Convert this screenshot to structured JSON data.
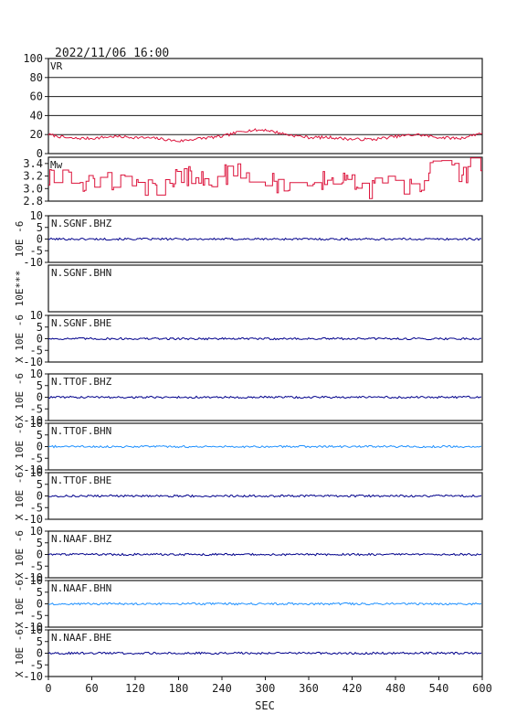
{
  "title": "2022/11/06 16:00",
  "xlabel": "SEC",
  "colors": {
    "frame": "#1a1a1a",
    "grid": "#1a1a1a",
    "vr_line": "#dc143c",
    "mw_line": "#dc143c",
    "trace_dark": "#00008b",
    "trace_light": "#1e90ff"
  },
  "chart_data": [
    {
      "type": "line",
      "panel": "vr",
      "label": "VR",
      "xlim": [
        0,
        600
      ],
      "ylim": [
        0,
        100
      ],
      "yticks": [
        "0",
        "20",
        "40",
        "60",
        "80",
        "100"
      ],
      "grid": true,
      "series": [
        {
          "x": [
            0,
            30,
            60,
            90,
            120,
            150,
            180,
            210,
            240,
            270,
            300,
            330,
            360,
            390,
            420,
            450,
            480,
            510,
            540,
            570,
            600
          ],
          "values": [
            20,
            16,
            16,
            18,
            17,
            16,
            13,
            16,
            18,
            24,
            25,
            20,
            17,
            17,
            15,
            15,
            18,
            20,
            17,
            16,
            22
          ]
        }
      ]
    },
    {
      "type": "line",
      "panel": "mw",
      "label": "Mw",
      "xlim": [
        0,
        600
      ],
      "ylim": [
        2.8,
        3.5
      ],
      "yticks": [
        "2.8",
        "3.0",
        "3.2",
        "3.4"
      ],
      "grid": false,
      "series": [
        {
          "x": [
            0,
            30,
            60,
            90,
            120,
            150,
            180,
            210,
            240,
            270,
            300,
            330,
            360,
            390,
            420,
            450,
            480,
            510,
            540,
            570,
            600
          ],
          "values": [
            3.2,
            3.1,
            3.05,
            3.1,
            3.0,
            2.95,
            3.25,
            3.1,
            3.2,
            3.25,
            3.1,
            3.1,
            3.05,
            3.2,
            3.05,
            3.0,
            3.1,
            3.05,
            3.4,
            3.2,
            3.45
          ]
        }
      ]
    }
  ],
  "traces": [
    {
      "label": "N.SGNF.BHZ",
      "ylabel": "10E -6",
      "yticks": [
        "10",
        "5",
        "0",
        "-5",
        "-10"
      ],
      "has_signal": true,
      "shade": "dark"
    },
    {
      "label": "N.SGNF.BHN",
      "ylabel": "10E***",
      "yticks": [],
      "has_signal": false,
      "shade": "dark"
    },
    {
      "label": "N.SGNF.BHE",
      "ylabel": "X 10E -6",
      "yticks": [
        "10",
        "5",
        "0",
        "-5",
        "-10"
      ],
      "has_signal": true,
      "shade": "dark"
    },
    {
      "label": "N.TTOF.BHZ",
      "ylabel": "X 10E -6",
      "yticks": [
        "10",
        "5",
        "0",
        "-5",
        "-10"
      ],
      "has_signal": true,
      "shade": "dark"
    },
    {
      "label": "N.TTOF.BHN",
      "ylabel": "X 10E -6",
      "yticks": [
        "10",
        "5",
        "0",
        "-5",
        "-10"
      ],
      "has_signal": true,
      "shade": "light"
    },
    {
      "label": "N.TTOF.BHE",
      "ylabel": "X 10E -6",
      "yticks": [
        "10",
        "5",
        "0",
        "-5",
        "-10"
      ],
      "has_signal": true,
      "shade": "dark"
    },
    {
      "label": "N.NAAF.BHZ",
      "ylabel": "X 10E -6",
      "yticks": [
        "10",
        "5",
        "0",
        "-5",
        "-10"
      ],
      "has_signal": true,
      "shade": "dark"
    },
    {
      "label": "N.NAAF.BHN",
      "ylabel": "X 10E -6",
      "yticks": [
        "10",
        "5",
        "0",
        "-5",
        "-10"
      ],
      "has_signal": true,
      "shade": "light"
    },
    {
      "label": "N.NAAF.BHE",
      "ylabel": "X 10E -6",
      "yticks": [
        "10",
        "5",
        "0",
        "-5",
        "-10"
      ],
      "has_signal": true,
      "shade": "dark"
    }
  ],
  "xticks": [
    "0",
    "60",
    "120",
    "180",
    "240",
    "300",
    "360",
    "420",
    "480",
    "540",
    "600"
  ]
}
